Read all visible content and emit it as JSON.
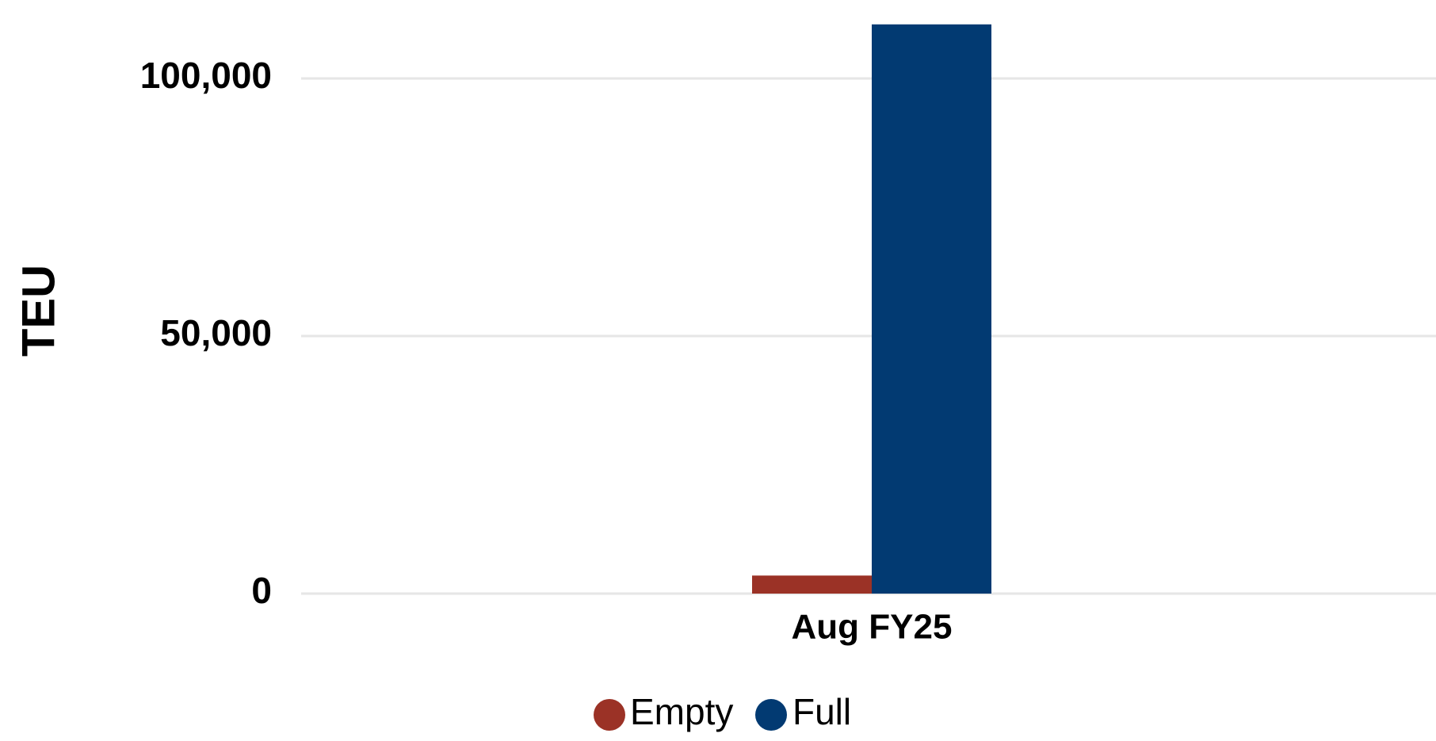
{
  "chart_data": {
    "type": "bar",
    "categories": [
      "Aug FY25"
    ],
    "series": [
      {
        "name": "Empty",
        "values": [
          3500
        ],
        "color": "#9b3226"
      },
      {
        "name": "Full",
        "values": [
          110500
        ],
        "color": "#023a72"
      }
    ],
    "ylabel": "TEU",
    "xlabel": "",
    "title": "",
    "yticks": [
      0,
      50000,
      100000
    ],
    "ytick_labels": [
      "0",
      "50,000",
      "100,000"
    ],
    "ylim": [
      0,
      110500
    ],
    "grid": true,
    "legend_position": "bottom-center"
  }
}
